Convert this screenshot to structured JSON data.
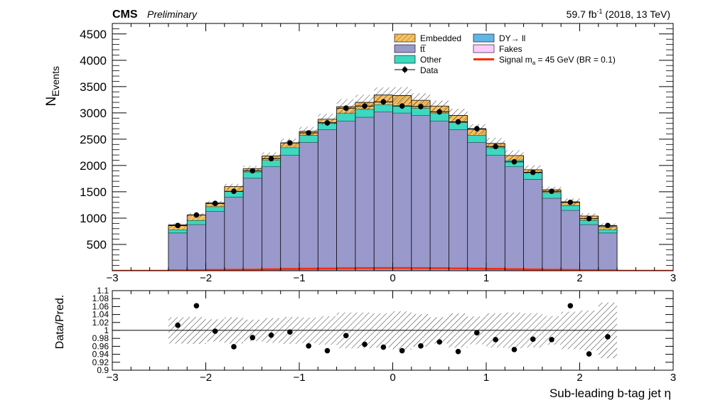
{
  "header": {
    "experiment": "CMS",
    "status": "Preliminary",
    "lumi_value": "59.7 fb",
    "lumi_exp": "-1",
    "lumi_rest": " (2018, 13 TeV)"
  },
  "legend": {
    "embedded": "Embedded",
    "dy_prefix": "DY",
    "dy_suffix": " ll",
    "ttbar": "tt̅",
    "fakes": "Fakes",
    "other": "Other",
    "signal_prefix": "Signal m",
    "signal_sub": "a",
    "signal_rest": " = 45 GeV (BR = 0.1)",
    "data": "Data"
  },
  "colors": {
    "embedded": "#f8c163",
    "ttbar": "#9999cc",
    "other": "#3cd8c0",
    "dy": "#62b6e6",
    "fakes": "#ffccff",
    "signal": "#ff2a00",
    "data": "#000000"
  },
  "chart_data": [
    {
      "type": "bar",
      "stacked": true,
      "ylabel_main": "N",
      "ylabel_sub": "Events",
      "xlim": [
        -3,
        3
      ],
      "ylim": [
        0,
        4700
      ],
      "yticks": [
        500,
        1000,
        1500,
        2000,
        2500,
        3000,
        3500,
        4000,
        4500
      ],
      "xticks": [
        -3,
        -2,
        -1,
        0,
        1,
        2,
        3
      ],
      "bin_edges": [
        -2.4,
        -2.2,
        -2.0,
        -1.8,
        -1.6,
        -1.4,
        -1.2,
        -1.0,
        -0.8,
        -0.6,
        -0.4,
        -0.2,
        0.0,
        0.2,
        0.4,
        0.6,
        0.8,
        1.0,
        1.2,
        1.4,
        1.6,
        1.8,
        2.0,
        2.2,
        2.4
      ],
      "series": [
        {
          "name": "tt̅",
          "values": [
            720,
            880,
            1130,
            1400,
            1760,
            1980,
            2200,
            2440,
            2680,
            2850,
            2920,
            3020,
            3000,
            2950,
            2850,
            2680,
            2440,
            2200,
            1980,
            1740,
            1380,
            1150,
            880,
            720
          ]
        },
        {
          "name": "Other",
          "values": [
            60,
            80,
            90,
            110,
            120,
            120,
            140,
            140,
            140,
            150,
            150,
            140,
            140,
            140,
            150,
            140,
            140,
            140,
            120,
            120,
            110,
            90,
            80,
            60
          ]
        },
        {
          "name": "Embedded",
          "values": [
            90,
            100,
            70,
            90,
            60,
            80,
            90,
            70,
            60,
            120,
            130,
            180,
            190,
            150,
            130,
            130,
            110,
            80,
            90,
            60,
            50,
            70,
            80,
            60
          ]
        }
      ],
      "data_points": {
        "name": "Data",
        "x": [
          -2.3,
          -2.1,
          -1.9,
          -1.7,
          -1.5,
          -1.3,
          -1.1,
          -0.9,
          -0.7,
          -0.5,
          -0.3,
          -0.1,
          0.1,
          0.3,
          0.5,
          0.7,
          0.9,
          1.1,
          1.3,
          1.5,
          1.7,
          1.9,
          2.1,
          2.3
        ],
        "y": [
          860,
          1060,
          1280,
          1510,
          1900,
          2130,
          2430,
          2620,
          2810,
          3090,
          3130,
          3210,
          3130,
          3120,
          3020,
          2830,
          2700,
          2360,
          2070,
          1870,
          1510,
          1300,
          990,
          860
        ]
      },
      "signal": {
        "name": "Signal m_a = 45 GeV (BR = 0.1)",
        "values": [
          6,
          10,
          14,
          18,
          22,
          28,
          34,
          38,
          42,
          46,
          50,
          52,
          52,
          50,
          48,
          44,
          40,
          36,
          30,
          24,
          18,
          14,
          10,
          6
        ]
      }
    },
    {
      "type": "scatter",
      "ylabel": "Data/Pred.",
      "xlabel": "Sub-leading b-tag jet η",
      "xlim": [
        -3,
        3
      ],
      "ylim": [
        0.9,
        1.1
      ],
      "yticks": [
        0.9,
        0.92,
        0.94,
        0.96,
        0.98,
        1,
        1.02,
        1.04,
        1.06,
        1.08,
        1.1
      ],
      "xticks": [
        -3,
        -2,
        -1,
        0,
        1,
        2,
        3
      ],
      "x": [
        -2.3,
        -2.1,
        -1.9,
        -1.7,
        -1.5,
        -1.3,
        -1.1,
        -0.9,
        -0.7,
        -0.5,
        -0.3,
        -0.1,
        0.1,
        0.3,
        0.5,
        0.7,
        0.9,
        1.1,
        1.3,
        1.5,
        1.7,
        1.9,
        2.1,
        2.3
      ],
      "y": [
        1.013,
        1.062,
        0.998,
        0.959,
        0.982,
        0.988,
        0.996,
        0.961,
        0.949,
        0.987,
        0.965,
        0.958,
        0.949,
        0.961,
        0.971,
        0.947,
        0.994,
        0.977,
        0.952,
        0.978,
        0.977,
        1.062,
        0.941,
        0.984
      ],
      "unc_band": [
        0.033,
        0.034,
        0.028,
        0.033,
        0.027,
        0.031,
        0.034,
        0.032,
        0.036,
        0.045,
        0.045,
        0.043,
        0.048,
        0.041,
        0.033,
        0.043,
        0.035,
        0.043,
        0.045,
        0.043,
        0.036,
        0.047,
        0.05,
        0.07
      ]
    }
  ]
}
